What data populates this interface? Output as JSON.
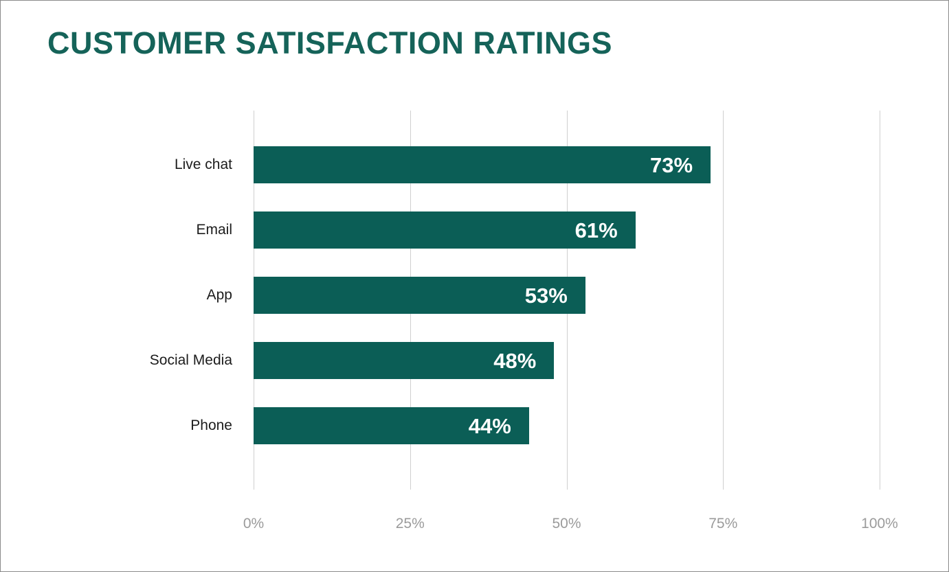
{
  "page": {
    "background": "#ffffff",
    "border_color": "#8a8a8a"
  },
  "chart_data": {
    "type": "bar",
    "orientation": "horizontal",
    "title": "CUSTOMER SATISFACTION RATINGS",
    "categories": [
      "Live chat",
      "Email",
      "App",
      "Social Media",
      "Phone"
    ],
    "values": [
      73,
      61,
      53,
      48,
      44
    ],
    "value_labels": [
      "73%",
      "61%",
      "53%",
      "48%",
      "44%"
    ],
    "xlabel": "",
    "ylabel": "",
    "xlim": [
      0,
      100
    ],
    "x_ticks": [
      {
        "value": 0,
        "label": "0%"
      },
      {
        "value": 25,
        "label": "25%"
      },
      {
        "value": 50,
        "label": "50%"
      },
      {
        "value": 75,
        "label": "75%"
      },
      {
        "value": 100,
        "label": "100%"
      }
    ],
    "grid": true,
    "legend": false,
    "value_label_position": "inside-end",
    "colors": {
      "bar": "#0b5e56",
      "title": "#156359",
      "category_label": "#1c1c1c",
      "value_label": "#ffffff",
      "tick_label": "#9b9b9b",
      "gridline": "#cfcfcf"
    }
  }
}
